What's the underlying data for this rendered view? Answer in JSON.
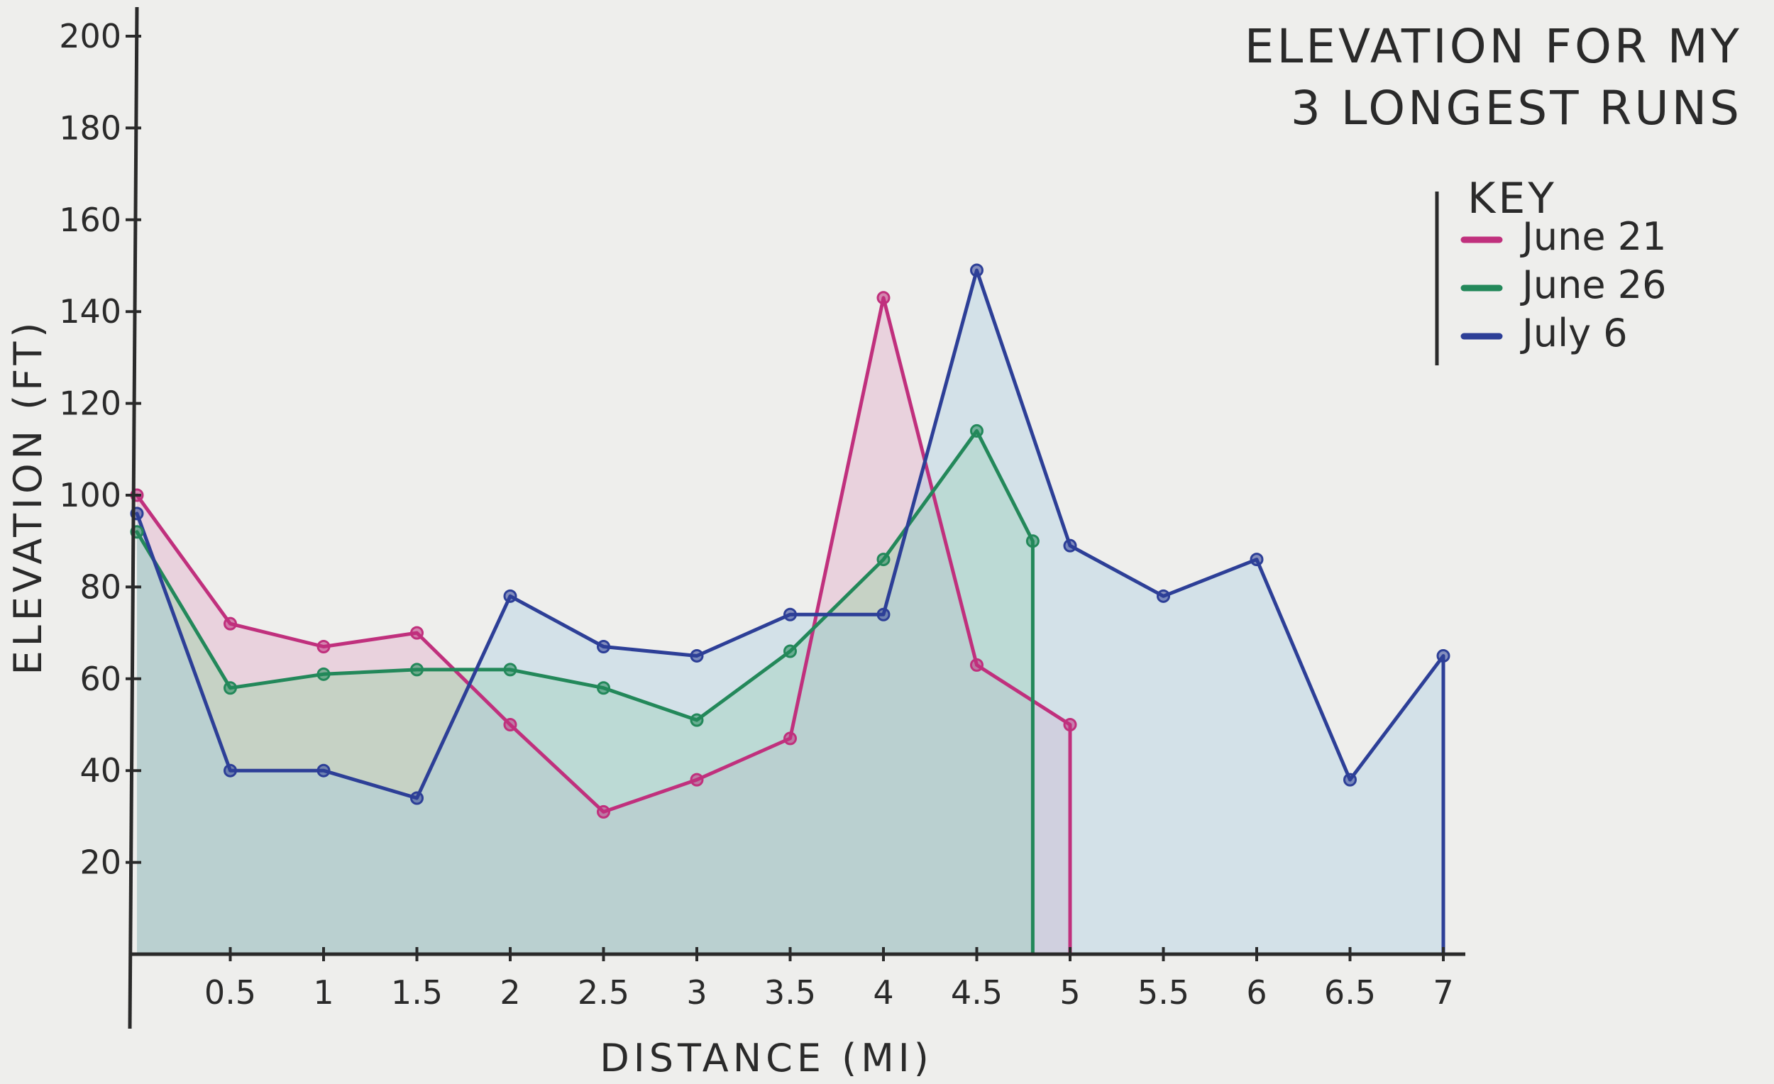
{
  "chart_data": {
    "type": "area",
    "title_lines": [
      "ELEVATION FOR MY",
      "3 LONGEST RUNS"
    ],
    "xlabel": "DISTANCE (MI)",
    "ylabel": "ELEVATION (FT)",
    "xlim": [
      0,
      7.3
    ],
    "ylim": [
      0,
      200
    ],
    "x_ticks": [
      0.5,
      1,
      1.5,
      2,
      2.5,
      3,
      3.5,
      4,
      4.5,
      5,
      5.5,
      6,
      6.5,
      7
    ],
    "x_tick_labels": [
      "0.5",
      "1",
      "1.5",
      "2",
      "2.5",
      "3",
      "3.5",
      "4",
      "4.5",
      "5",
      "5.5",
      "6",
      "6.5",
      "7"
    ],
    "y_ticks": [
      20,
      40,
      60,
      80,
      100,
      120,
      140,
      160,
      180,
      200
    ],
    "y_tick_labels": [
      "20",
      "40",
      "60",
      "80",
      "100",
      "120",
      "140",
      "160",
      "180",
      "200"
    ],
    "grid": false,
    "legend": {
      "title": "KEY",
      "placement": "top-right"
    },
    "series": [
      {
        "name": "June 21",
        "color": "#c0307d",
        "fill": "#e3a6c6",
        "x": [
          0,
          0.5,
          1,
          1.5,
          2,
          2.5,
          3,
          3.5,
          4,
          4.5,
          5
        ],
        "y": [
          100,
          72,
          67,
          70,
          50,
          31,
          38,
          47,
          143,
          63,
          50
        ]
      },
      {
        "name": "June 26",
        "color": "#23885a",
        "fill": "#8fd39e",
        "x": [
          0,
          0.5,
          1,
          1.5,
          2,
          2.5,
          3,
          3.5,
          4,
          4.5,
          4.8
        ],
        "y": [
          92,
          58,
          61,
          62,
          62,
          58,
          51,
          66,
          86,
          114,
          90
        ]
      },
      {
        "name": "July 6",
        "color": "#2d3f97",
        "fill": "#a8cce3",
        "x": [
          0,
          0.5,
          1,
          1.5,
          2,
          2.5,
          3,
          3.5,
          4,
          4.5,
          5,
          5.5,
          6,
          6.5,
          7
        ],
        "y": [
          96,
          40,
          40,
          34,
          78,
          67,
          65,
          74,
          74,
          149,
          89,
          78,
          86,
          38,
          65
        ]
      }
    ]
  }
}
